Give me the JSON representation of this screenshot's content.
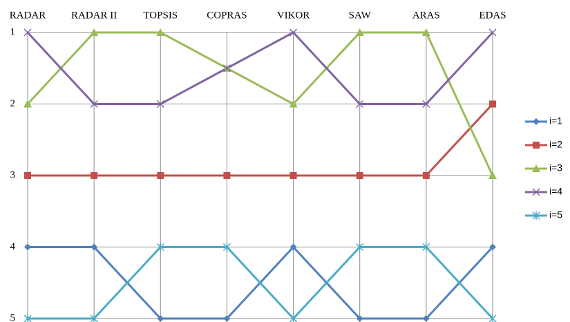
{
  "chart_data": {
    "type": "line",
    "categories": [
      "RADAR",
      "RADAR II",
      "TOPSIS",
      "COPRAS",
      "VIKOR",
      "SAW",
      "ARAS",
      "EDAS"
    ],
    "series": [
      {
        "name": "i=1",
        "color": "#4f81bd",
        "marker": "diamond",
        "values": [
          4,
          4,
          5,
          5,
          4,
          5,
          5,
          4
        ]
      },
      {
        "name": "i=2",
        "color": "#c0504d",
        "marker": "square",
        "values": [
          3,
          3,
          3,
          3,
          3,
          3,
          3,
          2
        ]
      },
      {
        "name": "i=3",
        "color": "#9bbb59",
        "marker": "triangle",
        "values": [
          2,
          1,
          1,
          1.5,
          2,
          1,
          1,
          3
        ]
      },
      {
        "name": "i=4",
        "color": "#8064a2",
        "marker": "x",
        "values": [
          1,
          2,
          2,
          1.5,
          1,
          2,
          2,
          1
        ]
      },
      {
        "name": "i=5",
        "color": "#4bacc6",
        "marker": "star",
        "values": [
          5,
          5,
          4,
          4,
          5,
          4,
          4,
          5
        ]
      }
    ],
    "ylim": [
      1,
      5
    ],
    "yticks": [
      1,
      2,
      3,
      4,
      5
    ],
    "y_inverted": true,
    "grid": true,
    "legend": "right"
  }
}
